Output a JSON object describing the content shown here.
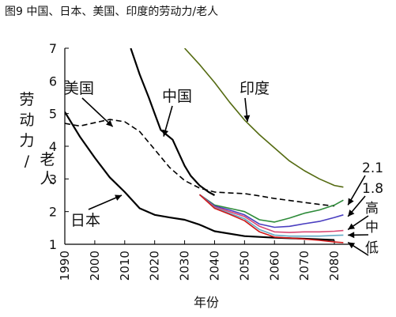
{
  "chart_data": {
    "type": "line",
    "title": "图9 中国、日本、美国、印度的劳动力/老人",
    "xlabel": "年份",
    "ylabel": "劳动力/老人",
    "xlim": [
      1990,
      2085
    ],
    "ylim": [
      1,
      7
    ],
    "x_ticks": [
      "1990",
      "2000",
      "2010",
      "2020",
      "2030",
      "2040",
      "2050",
      "2060",
      "2070",
      "2080"
    ],
    "y_ticks": [
      "1",
      "2",
      "3",
      "4",
      "5",
      "6",
      "7"
    ],
    "series": [
      {
        "name": "美国",
        "color": "#000000",
        "dash": true,
        "x": [
          1990,
          1995,
          2000,
          2005,
          2010,
          2015,
          2020,
          2025,
          2030,
          2035,
          2040,
          2045,
          2050,
          2055,
          2060,
          2065,
          2070,
          2075,
          2080
        ],
        "y": [
          4.7,
          4.62,
          4.72,
          4.82,
          4.75,
          4.45,
          3.9,
          3.35,
          2.95,
          2.72,
          2.6,
          2.57,
          2.55,
          2.48,
          2.4,
          2.34,
          2.28,
          2.22,
          2.17
        ]
      },
      {
        "name": "日本",
        "color": "#000000",
        "dash": false,
        "x": [
          1990,
          1995,
          2000,
          2005,
          2010,
          2015,
          2020,
          2025,
          2030,
          2035,
          2040,
          2050,
          2060,
          2070,
          2080
        ],
        "y": [
          5.05,
          4.3,
          3.65,
          3.05,
          2.6,
          2.1,
          1.9,
          1.82,
          1.75,
          1.6,
          1.4,
          1.25,
          1.2,
          1.17,
          1.13
        ]
      },
      {
        "name": "中国",
        "color": "#000000",
        "dash": false,
        "x": [
          2012,
          2015,
          2018,
          2020,
          2022,
          2024,
          2026,
          2028,
          2030,
          2032,
          2035,
          2038,
          2040
        ],
        "y": [
          7,
          6.2,
          5.5,
          5.0,
          4.5,
          4.35,
          4.2,
          3.8,
          3.4,
          3.1,
          2.8,
          2.6,
          2.5
        ]
      },
      {
        "name": "印度",
        "color": "#556b12",
        "dash": false,
        "x": [
          2030,
          2035,
          2040,
          2045,
          2050,
          2055,
          2060,
          2065,
          2070,
          2075,
          2080,
          2083
        ],
        "y": [
          7,
          6.5,
          5.95,
          5.35,
          4.8,
          4.35,
          3.95,
          3.55,
          3.25,
          3.0,
          2.8,
          2.75
        ]
      },
      {
        "name": "",
        "color": "#2e8b3a",
        "dash": false,
        "x": [
          2035,
          2040,
          2045,
          2050,
          2055,
          2060,
          2065,
          2070,
          2075,
          2080,
          2083
        ],
        "y": [
          2.52,
          2.2,
          2.1,
          2.0,
          1.75,
          1.68,
          1.8,
          1.95,
          2.05,
          2.2,
          2.35
        ]
      },
      {
        "name": "",
        "color": "#4a3ec0",
        "dash": false,
        "x": [
          2035,
          2040,
          2045,
          2050,
          2055,
          2060,
          2065,
          2070,
          2075,
          2080,
          2083
        ],
        "y": [
          2.52,
          2.17,
          2.05,
          1.9,
          1.62,
          1.52,
          1.55,
          1.63,
          1.7,
          1.82,
          1.9
        ]
      },
      {
        "name": "",
        "color": "#d84a74",
        "dash": false,
        "x": [
          2035,
          2040,
          2045,
          2050,
          2055,
          2060,
          2065,
          2070,
          2075,
          2080,
          2083
        ],
        "y": [
          2.52,
          2.14,
          2.0,
          1.85,
          1.55,
          1.38,
          1.36,
          1.38,
          1.38,
          1.4,
          1.42
        ]
      },
      {
        "name": "",
        "color": "#62a9c4",
        "dash": false,
        "x": [
          2035,
          2040,
          2045,
          2050,
          2055,
          2060,
          2065,
          2070,
          2075,
          2080,
          2083
        ],
        "y": [
          2.52,
          2.12,
          1.95,
          1.78,
          1.45,
          1.28,
          1.25,
          1.25,
          1.25,
          1.27,
          1.28
        ]
      },
      {
        "name": "",
        "color": "#d01818",
        "dash": false,
        "x": [
          2035,
          2040,
          2045,
          2050,
          2055,
          2060,
          2065,
          2070,
          2075,
          2080,
          2083
        ],
        "y": [
          2.52,
          2.1,
          1.92,
          1.72,
          1.38,
          1.22,
          1.19,
          1.16,
          1.12,
          1.07,
          1.05
        ]
      }
    ],
    "annotations": [
      {
        "text": "美国",
        "target": [
          2006,
          4.6
        ],
        "pos": [
          100,
          118
        ]
      },
      {
        "text": "中国",
        "target": [
          2023,
          4.3
        ],
        "pos": [
          224,
          128
        ]
      },
      {
        "text": "印度",
        "target": [
          2051,
          4.75
        ],
        "pos": [
          322,
          118
        ]
      },
      {
        "text": "日本",
        "target": [
          2009,
          2.5
        ],
        "pos": [
          108,
          285
        ]
      }
    ],
    "right_labels": [
      {
        "text": "2.1",
        "target": [
          2084,
          2.2
        ],
        "pos": [
          458,
          212
        ]
      },
      {
        "text": "1.8",
        "target": [
          2084,
          1.85
        ],
        "pos": [
          458,
          238
        ]
      },
      {
        "text": "高",
        "target": [
          2084,
          1.45
        ],
        "pos": [
          462,
          263
        ]
      },
      {
        "text": "中",
        "target": [
          2084,
          1.28
        ],
        "pos": [
          462,
          287
        ]
      },
      {
        "text": "低",
        "target": [
          2084,
          1.06
        ],
        "pos": [
          462,
          313
        ]
      }
    ],
    "grid": false,
    "legend": "none"
  }
}
